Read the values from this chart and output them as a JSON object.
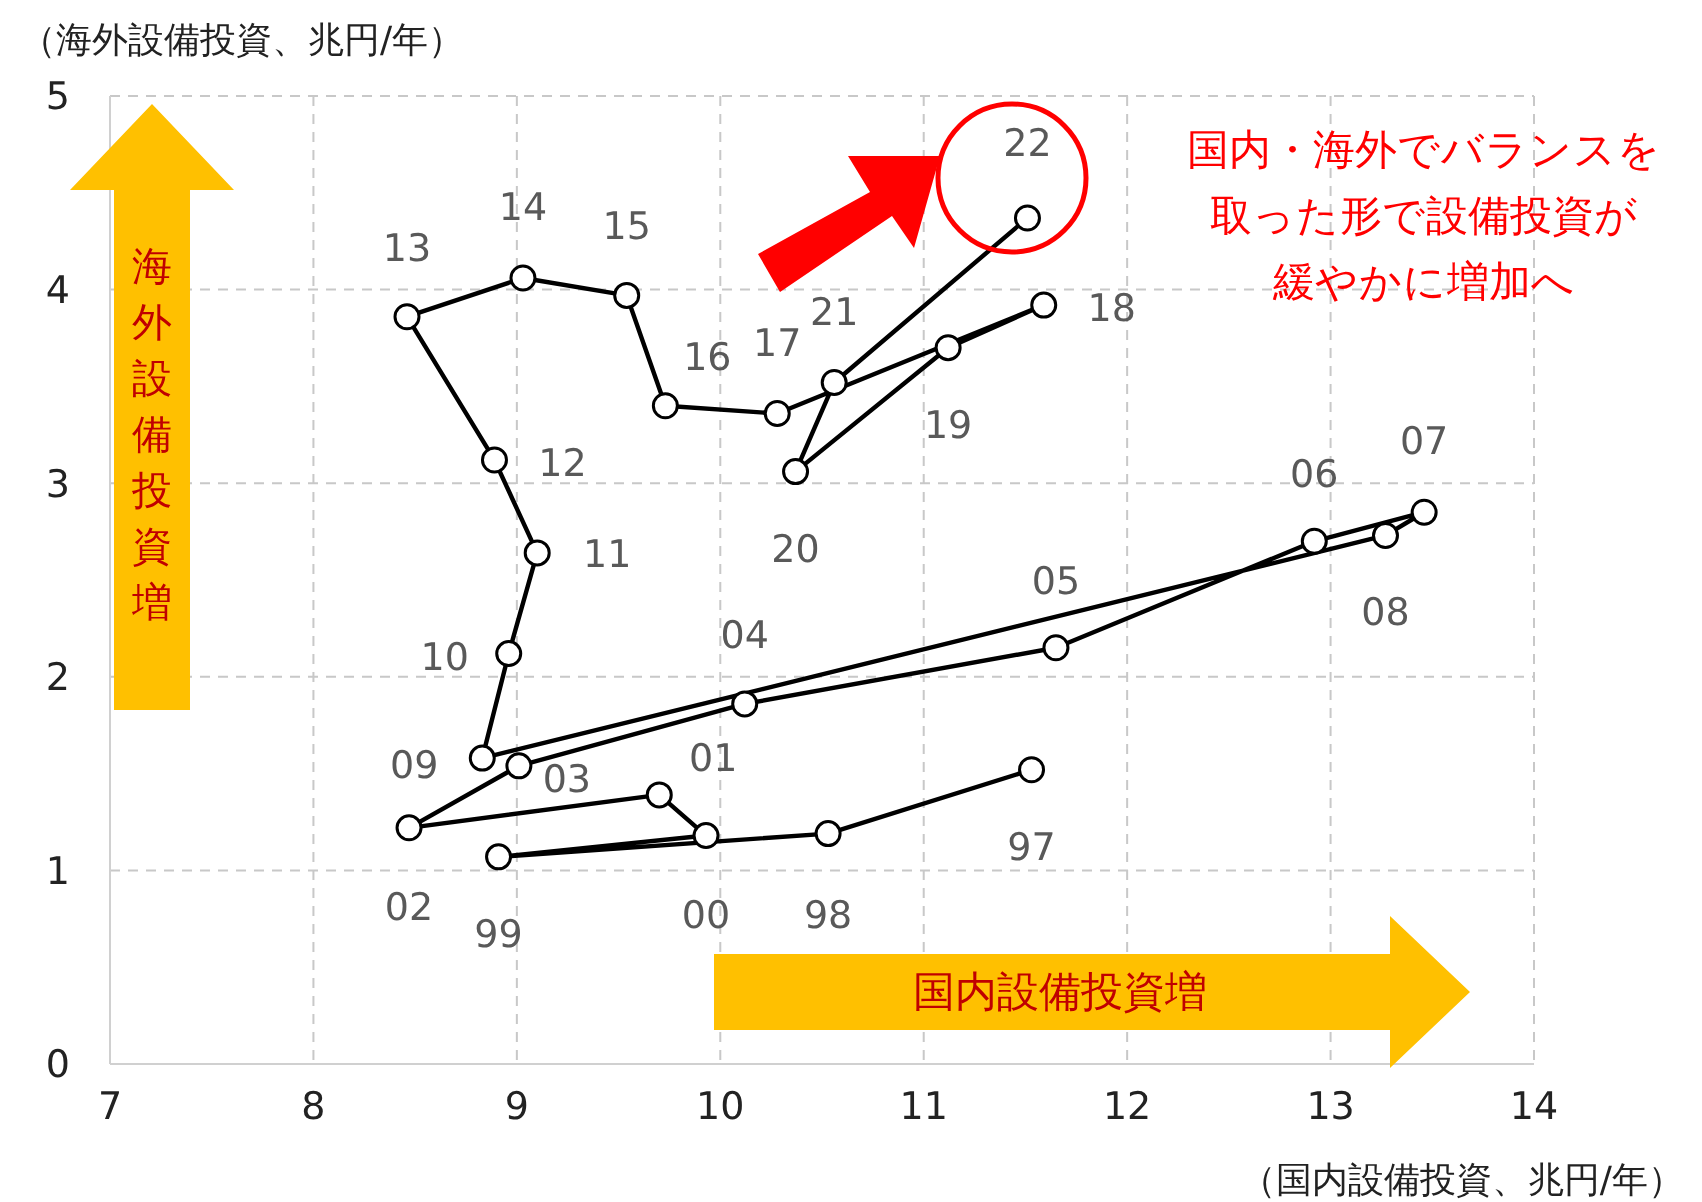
{
  "chart_data": {
    "type": "line",
    "xlabel": "（国内設備投資、兆円/年）",
    "ylabel": "（海外設備投資、兆円/年）",
    "x": [
      11.53,
      10.53,
      8.91,
      9.93,
      9.7,
      8.47,
      9.01,
      10.12,
      11.65,
      12.92,
      13.46,
      13.27,
      8.83,
      8.96,
      9.1,
      8.89,
      8.46,
      9.03,
      9.54,
      9.73,
      10.28,
      11.59,
      11.12,
      10.37,
      10.56,
      11.51
    ],
    "series": [
      {
        "color": "#000000",
        "values": [
          1.52,
          1.19,
          1.07,
          1.18,
          1.39,
          1.22,
          1.54,
          1.86,
          2.15,
          2.7,
          2.85,
          2.73,
          1.58,
          2.12,
          2.64,
          3.12,
          3.86,
          4.06,
          3.97,
          3.4,
          3.36,
          3.92,
          3.7,
          3.06,
          3.52,
          4.37
        ]
      }
    ],
    "xlim": [
      7,
      14
    ],
    "ylim": [
      0,
      5
    ],
    "xticks": [
      7,
      8,
      9,
      10,
      11,
      12,
      13,
      14
    ],
    "yticks": [
      0,
      1,
      2,
      3,
      4,
      5
    ],
    "grid": true,
    "marker": "circle",
    "line_style": "solid",
    "annotations": [
      {
        "text": "97",
        "x": 11.53,
        "y": 1.52
      },
      {
        "text": "98",
        "x": 10.53,
        "y": 1.19
      },
      {
        "text": "99",
        "x": 8.91,
        "y": 1.07
      },
      {
        "text": "00",
        "x": 9.93,
        "y": 1.18
      },
      {
        "text": "01",
        "x": 9.7,
        "y": 1.39
      },
      {
        "text": "02",
        "x": 8.47,
        "y": 1.22
      },
      {
        "text": "03",
        "x": 9.01,
        "y": 1.54
      },
      {
        "text": "04",
        "x": 10.12,
        "y": 1.86
      },
      {
        "text": "05",
        "x": 11.65,
        "y": 2.15
      },
      {
        "text": "06",
        "x": 12.92,
        "y": 2.7
      },
      {
        "text": "07",
        "x": 13.46,
        "y": 2.85
      },
      {
        "text": "08",
        "x": 13.27,
        "y": 2.73
      },
      {
        "text": "09",
        "x": 8.83,
        "y": 1.58
      },
      {
        "text": "10",
        "x": 8.96,
        "y": 2.12
      },
      {
        "text": "11",
        "x": 9.1,
        "y": 2.64
      },
      {
        "text": "12",
        "x": 8.89,
        "y": 3.12
      },
      {
        "text": "13",
        "x": 8.46,
        "y": 3.86
      },
      {
        "text": "14",
        "x": 9.03,
        "y": 4.06
      },
      {
        "text": "15",
        "x": 9.54,
        "y": 3.97
      },
      {
        "text": "16",
        "x": 9.73,
        "y": 3.4
      },
      {
        "text": "17",
        "x": 10.28,
        "y": 3.36
      },
      {
        "text": "18",
        "x": 11.59,
        "y": 3.92
      },
      {
        "text": "19",
        "x": 11.12,
        "y": 3.7
      },
      {
        "text": "20",
        "x": 10.37,
        "y": 3.06
      },
      {
        "text": "21",
        "x": 10.56,
        "y": 3.52
      },
      {
        "text": "22",
        "x": 11.51,
        "y": 4.37
      },
      "国内・海外でバランスを取った形で設備投資が緩やかに増加へ",
      "海外設備投資増",
      "国内設備投資増"
    ]
  }
}
